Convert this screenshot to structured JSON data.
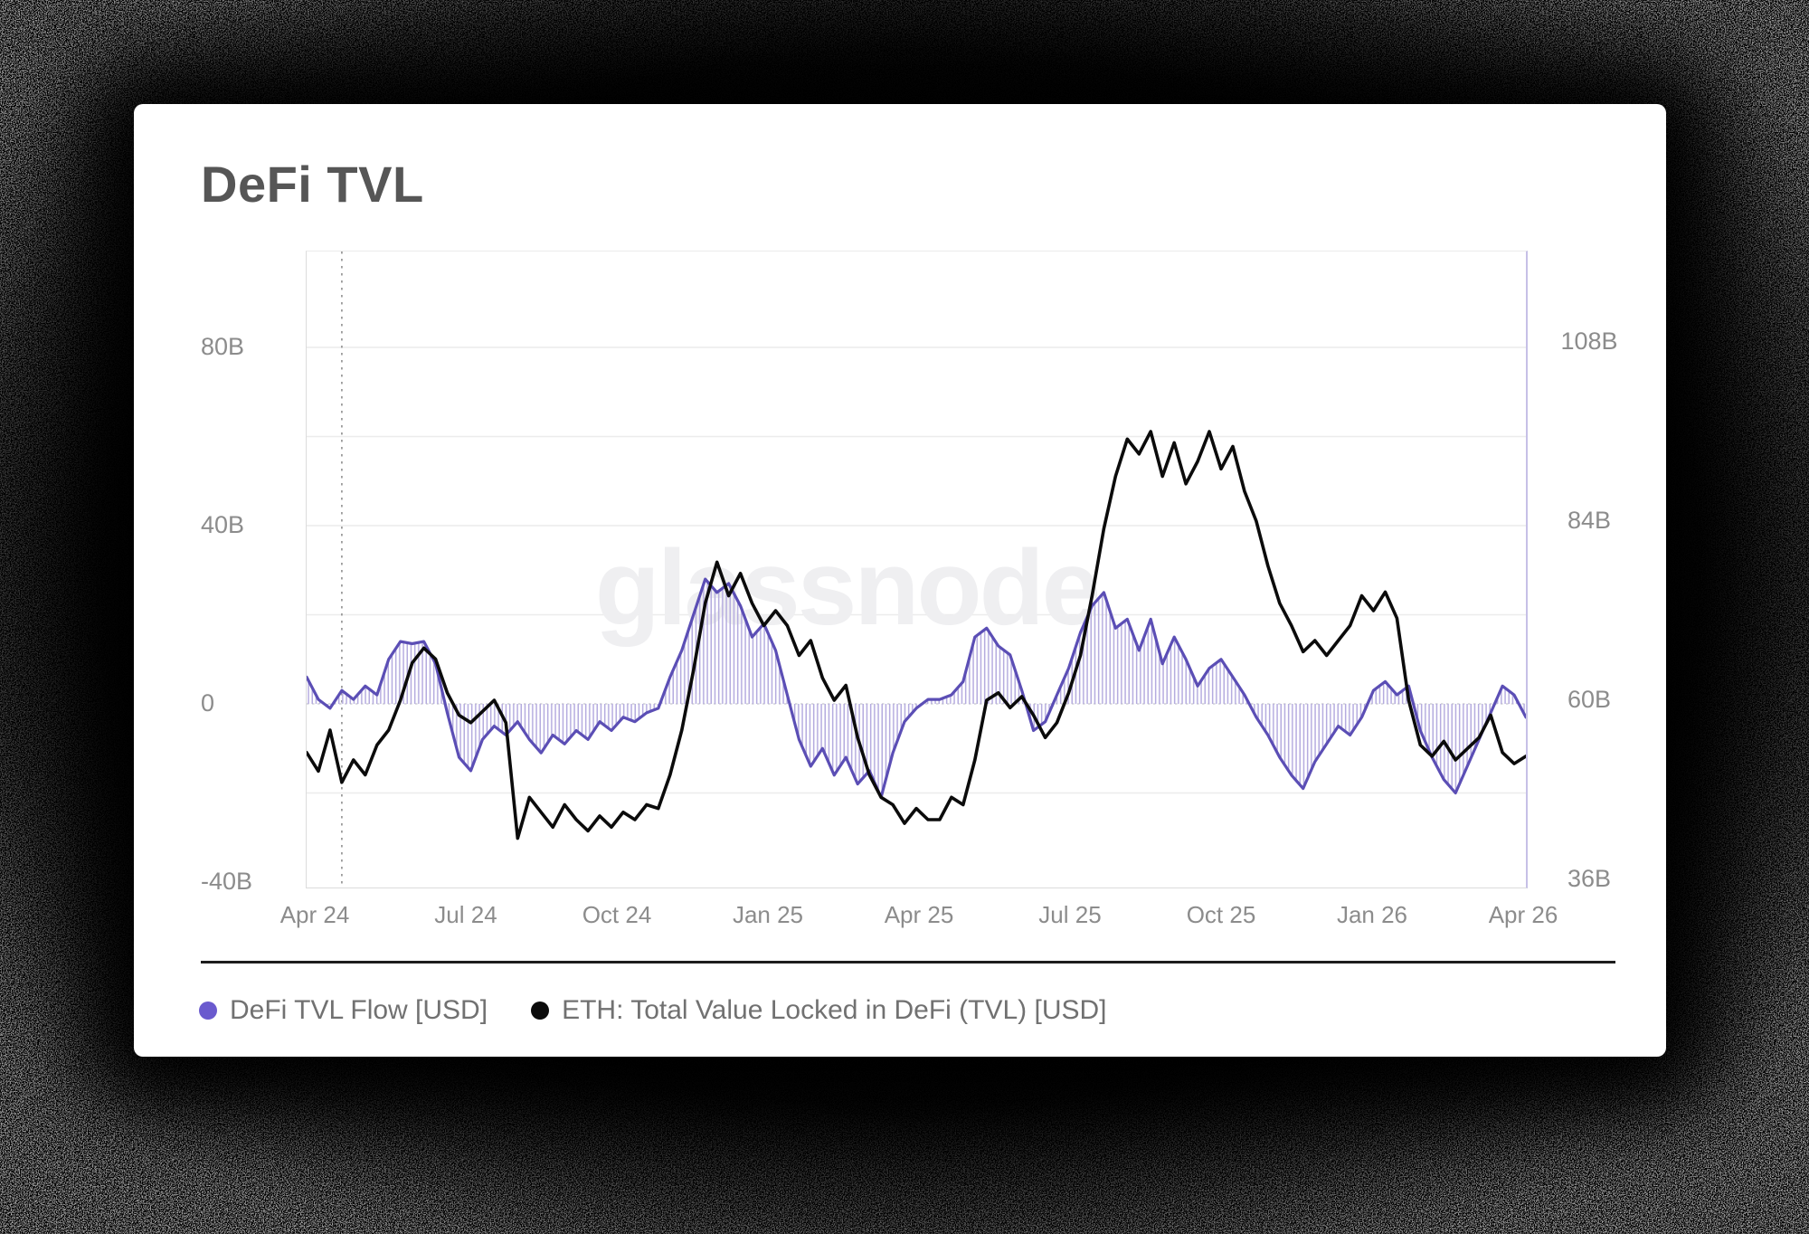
{
  "card": {
    "title": "DeFi TVL"
  },
  "watermark": "glassnode",
  "colors": {
    "flow_line": "#5b4eb5",
    "flow_hatch": "#b5acdf",
    "flow_legend_dot": "#6a5ace",
    "eth_line": "#0b0b0b",
    "grid": "#ececec",
    "zero_line": "#cfcfd6",
    "annotation_line": "#9b9b9b",
    "tick_text": "#8c8c8c",
    "watermark_text": "#efeff1"
  },
  "legend": [
    {
      "label": "DeFi TVL Flow [USD]",
      "color": "#6a5ace"
    },
    {
      "label": "ETH: Total Value Locked in DeFi (TVL) [USD]",
      "color": "#0b0b0b"
    }
  ],
  "chart_data": {
    "type": "line",
    "title": "DeFi TVL",
    "x_axis": {
      "tick_labels": [
        "Apr 24",
        "Jul 24",
        "Oct 24",
        "Jan 25",
        "Apr 25",
        "Jul 25",
        "Oct 25",
        "Jan 26",
        "Apr 26"
      ],
      "range_weeks": [
        0,
        104
      ],
      "gridlines": false
    },
    "left_axis": {
      "unit": "B USD",
      "tick_labels": [
        "80B",
        "40B",
        "0",
        "-40B"
      ],
      "tick_values": [
        80,
        40,
        0,
        -40
      ],
      "grid_values": [
        80,
        60,
        40,
        20,
        -20
      ],
      "range": [
        -41.2,
        101.5
      ]
    },
    "right_axis": {
      "unit": "B USD",
      "tick_labels": [
        "108B",
        "84B",
        "60B",
        "36B"
      ],
      "tick_values": [
        108,
        84,
        60,
        36
      ],
      "range": [
        35.2,
        120.4
      ]
    },
    "annotations": {
      "dotted_vline_week": 3
    },
    "sampling": "weekly (Apr 2024 - Apr 2026)",
    "series": [
      {
        "name": "DeFi TVL Flow [USD]",
        "axis": "left",
        "style": "hatched-area-line",
        "color": "#5b4eb5",
        "values": [
          6,
          1,
          -1,
          3,
          1,
          4,
          2,
          10,
          14,
          13.5,
          14,
          9,
          -2,
          -12,
          -15,
          -8,
          -5,
          -7,
          -4,
          -8,
          -11,
          -7,
          -9,
          -6,
          -8,
          -4,
          -6,
          -3,
          -4,
          -2,
          -1,
          6,
          12,
          20,
          28,
          25,
          27,
          22,
          15,
          18,
          12,
          2,
          -8,
          -14,
          -10,
          -16,
          -12,
          -18,
          -15,
          -21,
          -11,
          -4,
          -1,
          1,
          1,
          2,
          5,
          15,
          17,
          13,
          11,
          3,
          -6,
          -4,
          2,
          8,
          16,
          22,
          25,
          17,
          19,
          12,
          19,
          9,
          15,
          10,
          4,
          8,
          10,
          6,
          2,
          -3,
          -7,
          -12,
          -16,
          -19,
          -13,
          -9,
          -5,
          -7,
          -3,
          3,
          5,
          2,
          4,
          -6,
          -12,
          -17,
          -20,
          -14,
          -8,
          -2,
          4,
          2,
          -3
        ]
      },
      {
        "name": "ETH: Total Value Locked in DeFi (TVL) [USD]",
        "axis": "right",
        "style": "line",
        "color": "#0b0b0b",
        "values": [
          53,
          50.5,
          56,
          49,
          52,
          50,
          54,
          56,
          60,
          65,
          67,
          65.5,
          61,
          58,
          57,
          58.5,
          60,
          57,
          41.5,
          47,
          45,
          43,
          46,
          44,
          42.5,
          44.5,
          43,
          45,
          44,
          46,
          45.5,
          50,
          56,
          64,
          73,
          78.5,
          74,
          77,
          73,
          70,
          72,
          70,
          66,
          68,
          63,
          60,
          62,
          55,
          50,
          47,
          46,
          43.5,
          45.5,
          44,
          44,
          47,
          46,
          52,
          60,
          61,
          59,
          60.5,
          58,
          55,
          57,
          61,
          66,
          74,
          83,
          90,
          95,
          93,
          96,
          90,
          94.5,
          89,
          92,
          96,
          91,
          94,
          88,
          84,
          78,
          73,
          70,
          66.5,
          68,
          66,
          68,
          70,
          74,
          72,
          74.5,
          71,
          60,
          54,
          52.5,
          54.5,
          52,
          53.5,
          55,
          58,
          53,
          51.5,
          52.5
        ]
      }
    ]
  }
}
